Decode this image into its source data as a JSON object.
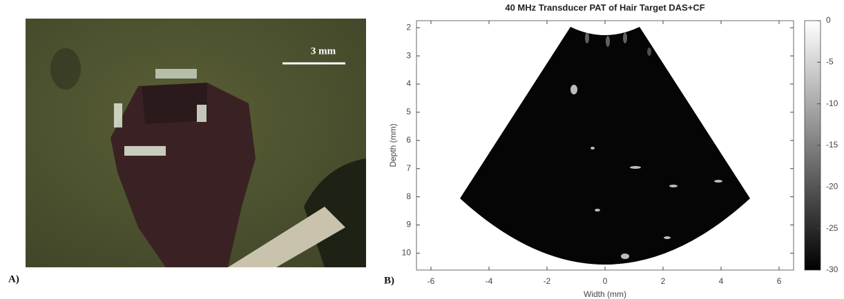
{
  "panel_labels": [
    "A)",
    "B)"
  ],
  "photo": {
    "scale_bar_label": "3 mm"
  },
  "chart_data": {
    "type": "image",
    "title": "40 MHz Transducer PAT of Hair Target DAS+CF",
    "xlabel": "Width (mm)",
    "ylabel": "Depth (mm)",
    "xlim": [
      -6.5,
      6.5
    ],
    "ylim": [
      1.75,
      10.6
    ],
    "y_reversed": true,
    "xticks": [
      -6,
      -4,
      -2,
      0,
      2,
      4,
      6
    ],
    "yticks": [
      2,
      3,
      4,
      5,
      6,
      7,
      8,
      9,
      10
    ],
    "colorbar": {
      "clim": [
        -30,
        0
      ],
      "ticks": [
        0,
        -5,
        -10,
        -15,
        -20,
        -25,
        -30
      ],
      "colormap": "gray"
    }
  }
}
